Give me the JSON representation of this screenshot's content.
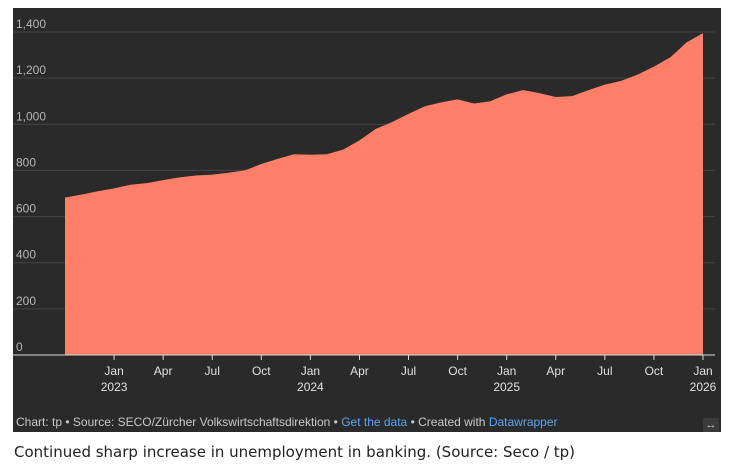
{
  "chart_data": {
    "type": "area",
    "y_ticks": [
      "0",
      "200",
      "400",
      "600",
      "800",
      "1,000",
      "1,200",
      "1,400"
    ],
    "x_ticks": [
      {
        "label": "Jan",
        "year": "2023",
        "date": "2023-01"
      },
      {
        "label": "Apr",
        "year": "",
        "date": "2023-04"
      },
      {
        "label": "Jul",
        "year": "",
        "date": "2023-07"
      },
      {
        "label": "Oct",
        "year": "",
        "date": "2023-10"
      },
      {
        "label": "Jan",
        "year": "2024",
        "date": "2024-01"
      },
      {
        "label": "Apr",
        "year": "",
        "date": "2024-04"
      },
      {
        "label": "Jul",
        "year": "",
        "date": "2024-07"
      },
      {
        "label": "Oct",
        "year": "",
        "date": "2024-10"
      },
      {
        "label": "Jan",
        "year": "2025",
        "date": "2025-01"
      },
      {
        "label": "Apr",
        "year": "",
        "date": "2025-04"
      },
      {
        "label": "Jul",
        "year": "",
        "date": "2025-07"
      },
      {
        "label": "Oct",
        "year": "",
        "date": "2025-10"
      },
      {
        "label": "Jan",
        "year": "2026",
        "date": "2026-01"
      }
    ],
    "ylim": [
      0,
      1400
    ],
    "xlim": [
      "2022-10",
      "2026-01"
    ],
    "grid": true,
    "area_color": "#ff7f69",
    "series": [
      {
        "x": [
          "2022-10",
          "2022-11",
          "2022-12",
          "2023-01",
          "2023-02",
          "2023-03",
          "2023-04",
          "2023-05",
          "2023-06",
          "2023-07",
          "2023-08",
          "2023-09",
          "2023-10",
          "2023-11",
          "2023-12",
          "2024-01",
          "2024-02",
          "2024-03",
          "2024-04",
          "2024-05",
          "2024-06",
          "2024-07",
          "2024-08",
          "2024-09",
          "2024-10",
          "2024-11",
          "2024-12",
          "2025-01",
          "2025-02",
          "2025-03",
          "2025-04",
          "2025-05",
          "2025-06",
          "2025-07",
          "2025-08",
          "2025-09",
          "2025-10",
          "2025-11",
          "2025-12",
          "2026-01"
        ],
        "values": [
          682,
          695,
          710,
          722,
          738,
          745,
          758,
          770,
          778,
          782,
          790,
          800,
          828,
          850,
          870,
          868,
          870,
          890,
          930,
          980,
          1010,
          1045,
          1078,
          1095,
          1108,
          1090,
          1100,
          1130,
          1148,
          1135,
          1118,
          1122,
          1148,
          1172,
          1188,
          1215,
          1250,
          1290,
          1355,
          1395
        ]
      }
    ]
  },
  "footer": {
    "prefix": "Chart: tp • Source: SECO/Zürcher Volkswirtschaftsdirektion • ",
    "get_data": "Get the data",
    "middle": " • Created with ",
    "datawrapper": "Datawrapper"
  },
  "expand_icon": "↔",
  "caption": "Continued sharp increase in unemployment in banking. (Source: Seco / tp)"
}
